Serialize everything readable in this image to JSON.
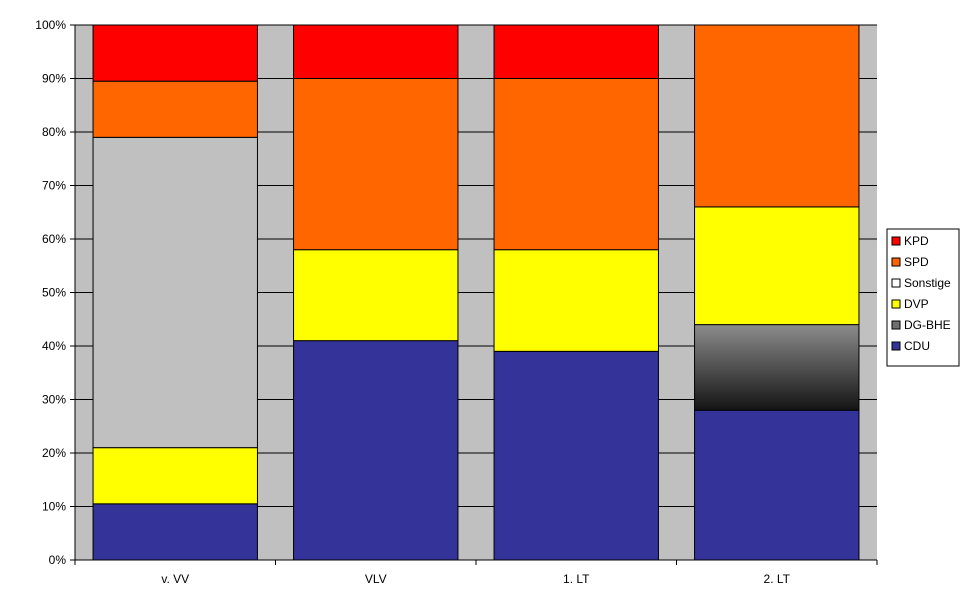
{
  "chart_data": {
    "type": "bar",
    "stacked": true,
    "percent": true,
    "categories": [
      "v. VV",
      "VLV",
      "1. LT",
      "2. LT"
    ],
    "series": [
      {
        "name": "CDU",
        "color": "#333399",
        "values": [
          10.5,
          41,
          39,
          28
        ]
      },
      {
        "name": "DG-BHE",
        "color": "#808080",
        "gradient": true,
        "values": [
          0,
          0,
          0,
          16
        ]
      },
      {
        "name": "DVP",
        "color": "#FFFF00",
        "values": [
          10.5,
          17,
          19,
          22
        ]
      },
      {
        "name": "Sonstige",
        "color": "#C0C0C0",
        "values": [
          58,
          0,
          0,
          0
        ]
      },
      {
        "name": "SPD",
        "color": "#FF6600",
        "values": [
          10.5,
          32,
          32,
          34
        ]
      },
      {
        "name": "KPD",
        "color": "#FF0000",
        "values": [
          10.5,
          10,
          10,
          0
        ]
      }
    ],
    "legend_order": [
      "KPD",
      "SPD",
      "Sonstige",
      "DVP",
      "DG-BHE",
      "CDU"
    ],
    "y_ticks": [
      "0%",
      "10%",
      "20%",
      "30%",
      "40%",
      "50%",
      "60%",
      "70%",
      "80%",
      "90%",
      "100%"
    ],
    "ylim": [
      0,
      100
    ],
    "title": "",
    "xlabel": "",
    "ylabel": "",
    "grid": true,
    "plot_background": "#C0C0C0",
    "legend_position": "right"
  }
}
